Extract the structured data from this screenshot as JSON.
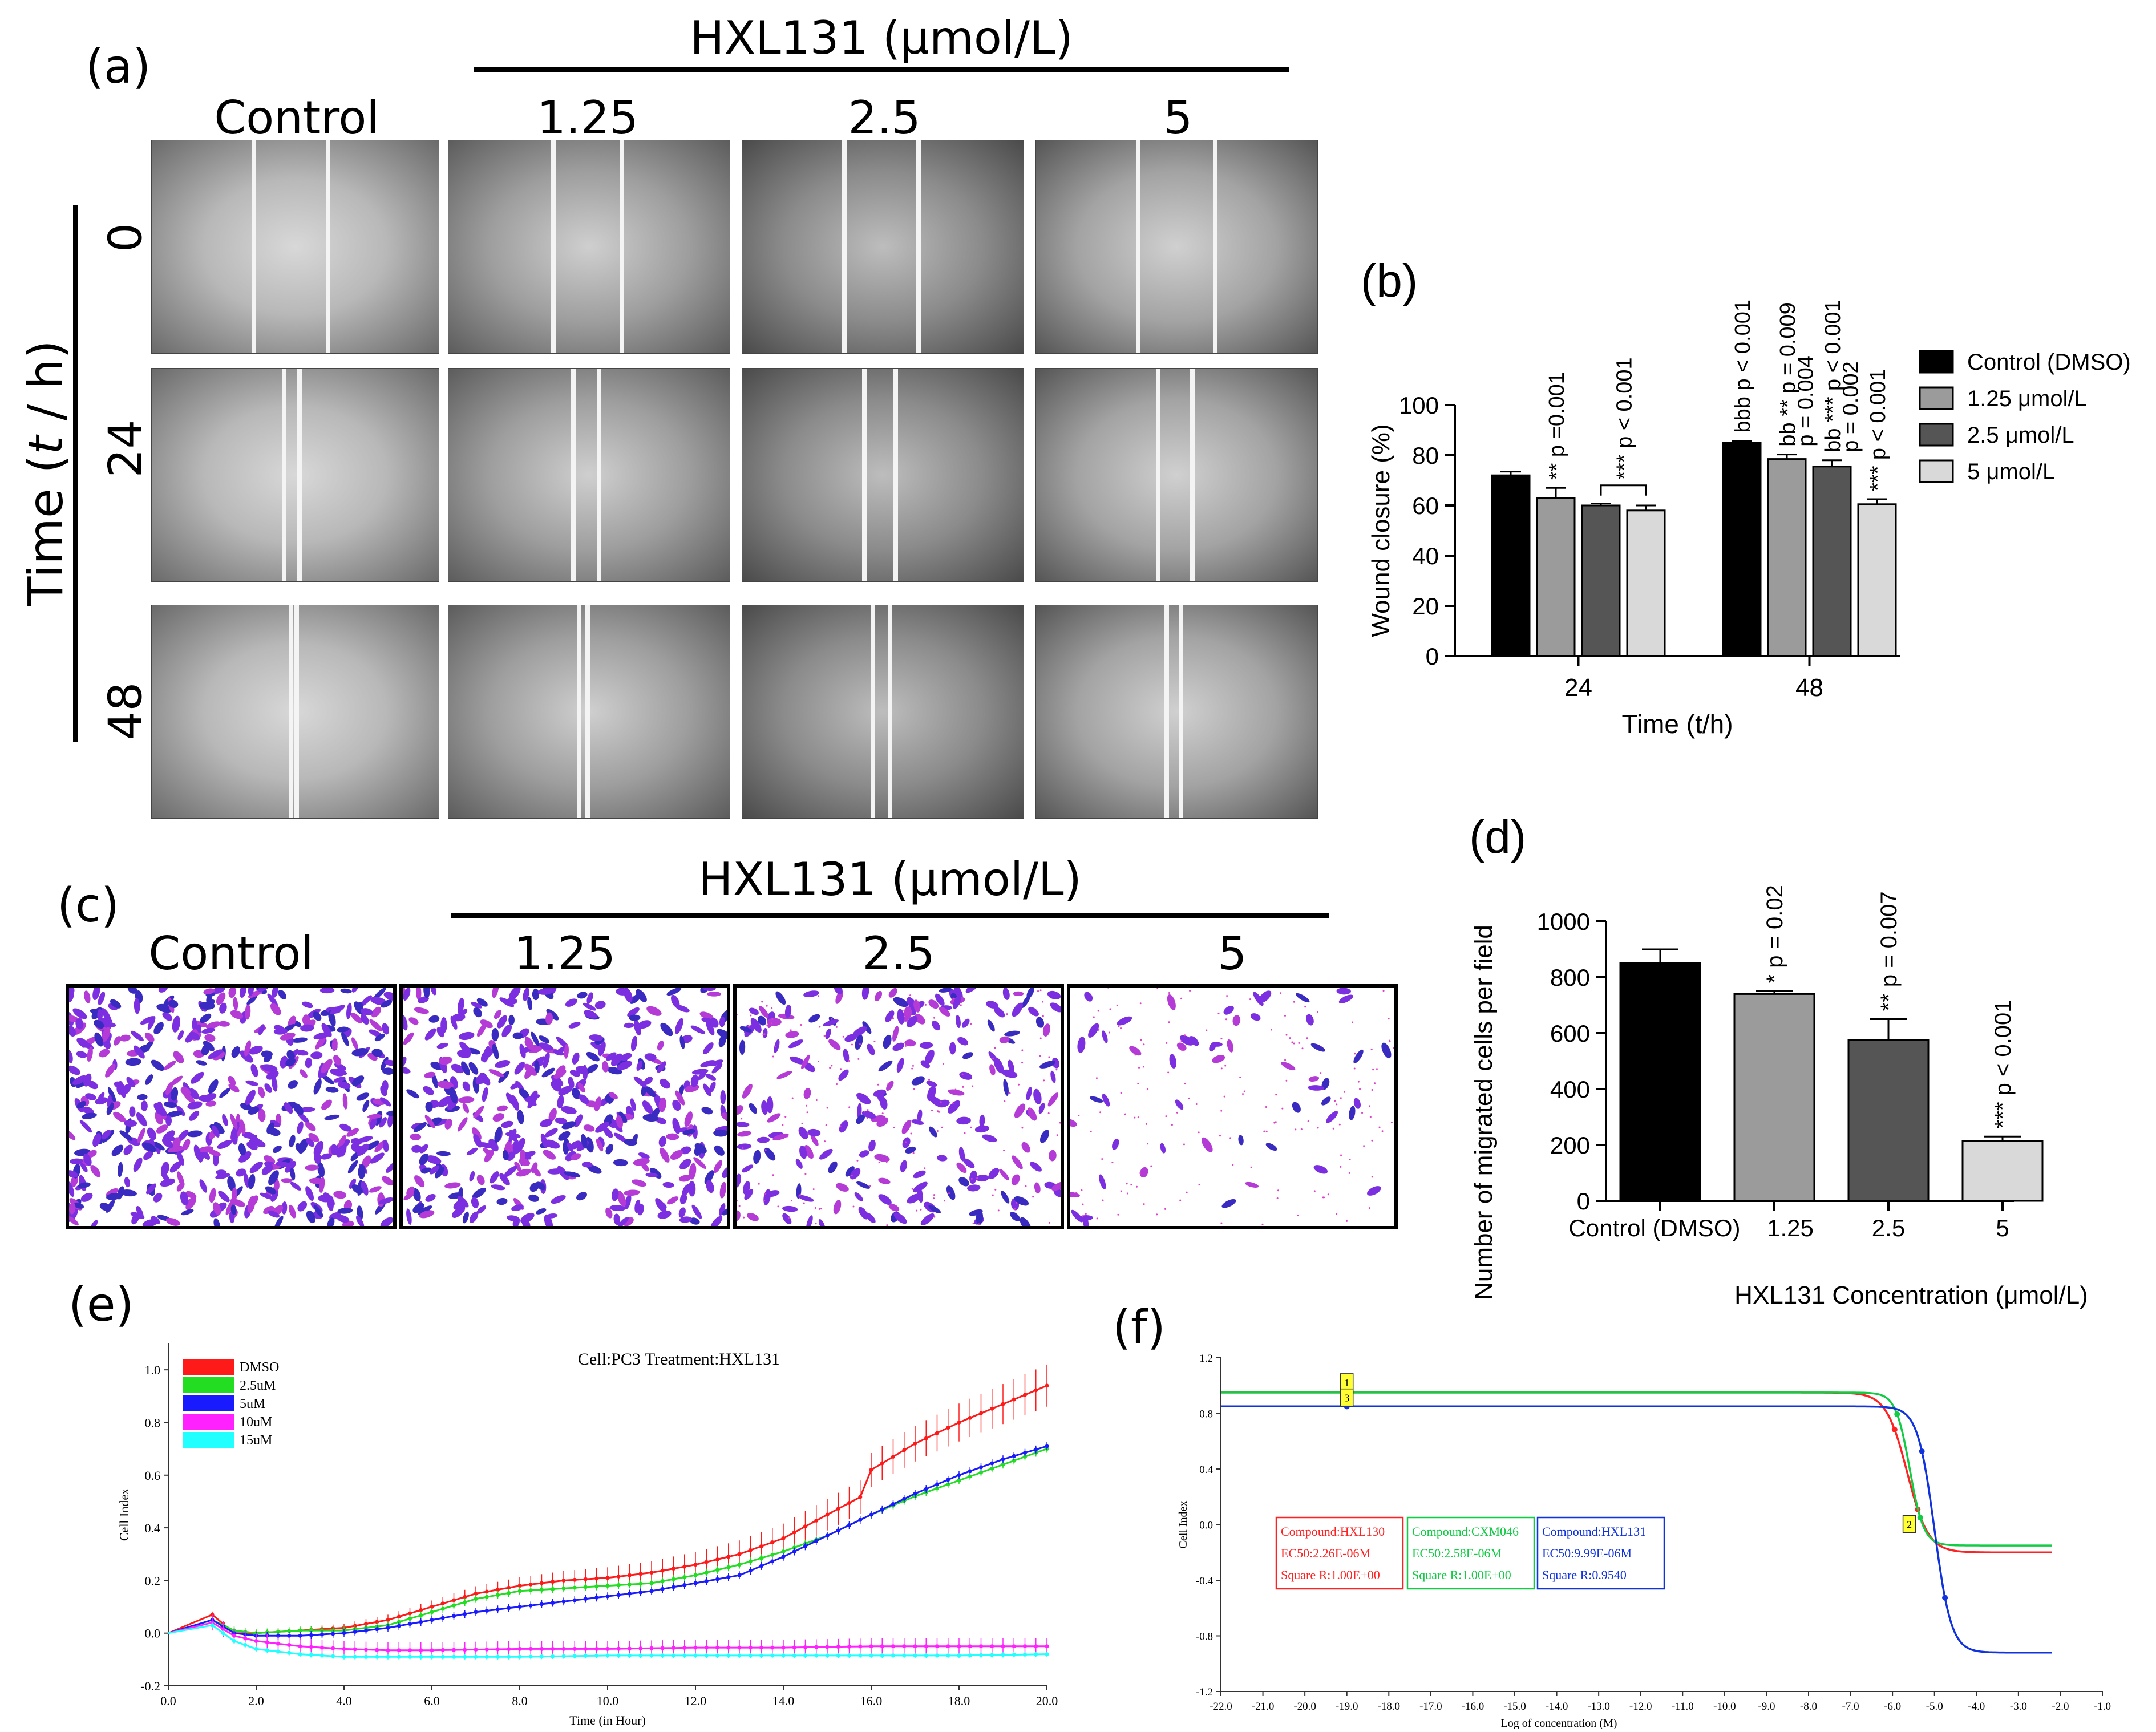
{
  "panel_a": {
    "label": "(a)",
    "treatment_header": "HXL131 (μmol/L)",
    "columns": [
      "Control",
      "1.25",
      "2.5",
      "5"
    ],
    "rows": [
      "0",
      "24",
      "48"
    ],
    "y_axis_label_prefix": "Time (",
    "y_axis_label_var": "t",
    "y_axis_label_suffix": " / h)"
  },
  "panel_c": {
    "label": "(c)",
    "treatment_header": "HXL131 (μmol/L)",
    "columns": [
      "Control",
      "1.25",
      "2.5",
      "5"
    ]
  },
  "panel_e_label": "(e)",
  "panel_f_label": "(f)",
  "colors": {
    "black": "#000000",
    "gray1": "#9b9b9b",
    "gray2": "#555555",
    "gray3": "#d9d9d9",
    "red": "#ff1a1a",
    "green": "#22dd22",
    "blue": "#1a1aff",
    "magenta": "#ff22ff",
    "cyan": "#22ffff",
    "f_red": "#ff2222",
    "f_green": "#11cc44",
    "f_blue": "#1133dd",
    "stain": "#8a2be2"
  },
  "chart_data": [
    {
      "id": "b",
      "type": "bar",
      "panel_label": "(b)",
      "ylabel": "Wound closure (%)",
      "xlabel": "Time (t/h)",
      "ylim": [
        0,
        100
      ],
      "yticks": [
        0,
        20,
        40,
        60,
        80,
        100
      ],
      "categories": [
        "24",
        "48"
      ],
      "series": [
        {
          "name": "Control (DMSO)",
          "values": [
            72,
            85
          ],
          "errors": [
            1.5,
            0.8
          ]
        },
        {
          "name": "1.25 μmol/L",
          "values": [
            63,
            78.5
          ],
          "errors": [
            4,
            1.8
          ]
        },
        {
          "name": "2.5 μmol/L",
          "values": [
            60,
            75.5
          ],
          "errors": [
            0.8,
            2.5
          ]
        },
        {
          "name": "5 μmol/L",
          "values": [
            58,
            60.5
          ],
          "errors": [
            2,
            2
          ]
        }
      ],
      "annotations": [
        {
          "group": "24",
          "series": 1,
          "text": "** p =0.001"
        },
        {
          "group": "24",
          "series": 2.5,
          "text": "*** p < 0.001",
          "bracket": true
        },
        {
          "group": "48",
          "series": 0,
          "text": "bbb p < 0.001"
        },
        {
          "group": "48",
          "series": 1,
          "text": "bb ** p = 0.009"
        },
        {
          "group": "48",
          "series": 1.4,
          "text": "p = 0.004"
        },
        {
          "group": "48",
          "series": 2,
          "text": "bb *** p < 0.001"
        },
        {
          "group": "48",
          "series": 2.4,
          "text": "p = 0.002"
        },
        {
          "group": "48",
          "series": 3,
          "text": "*** p < 0.001"
        }
      ]
    },
    {
      "id": "d",
      "type": "bar",
      "panel_label": "(d)",
      "ylabel": "Number of migrated cells per field",
      "xlabel": "HXL131 Concentration (μmol/L)",
      "ylim": [
        0,
        1000
      ],
      "yticks": [
        0,
        200,
        400,
        600,
        800,
        1000
      ],
      "categories": [
        "Control (DMSO)",
        "1.25",
        "2.5",
        "5"
      ],
      "values": [
        850,
        740,
        575,
        215
      ],
      "errors": [
        50,
        10,
        75,
        15
      ],
      "annotations": [
        "",
        "* p = 0.02",
        "** p = 0.007",
        "*** p < 0.001"
      ]
    },
    {
      "id": "e",
      "type": "line",
      "title": "Cell:PC3  Treatment:HXL131",
      "xlabel": "Time (in Hour)",
      "ylabel": "Cell Index",
      "xlim": [
        0,
        20
      ],
      "ylim": [
        -0.2,
        1.1
      ],
      "xticks": [
        0,
        2,
        4,
        6,
        8,
        10,
        12,
        14,
        16,
        18,
        20
      ],
      "yticks": [
        -0.2,
        0,
        0.2,
        0.4,
        0.6,
        0.8,
        1.0
      ],
      "series": [
        {
          "name": "DMSO",
          "x": [
            0,
            1,
            1.5,
            2,
            3,
            4,
            5,
            6,
            7,
            8,
            9,
            10,
            11,
            12,
            13,
            14,
            15,
            15.9,
            16,
            17,
            18,
            19,
            20
          ],
          "y": [
            0,
            0.07,
            0.0,
            0.0,
            0.01,
            0.02,
            0.05,
            0.1,
            0.15,
            0.18,
            0.2,
            0.21,
            0.23,
            0.26,
            0.3,
            0.36,
            0.45,
            0.53,
            0.62,
            0.72,
            0.8,
            0.87,
            0.94
          ],
          "err": 0.08
        },
        {
          "name": "2.5uM",
          "x": [
            0,
            1,
            1.5,
            2,
            3,
            4,
            5,
            6,
            7,
            8,
            9,
            10,
            11,
            12,
            13,
            14,
            15,
            16,
            17,
            18,
            19,
            20
          ],
          "y": [
            0,
            0.05,
            0.01,
            0.0,
            0.01,
            0.01,
            0.03,
            0.08,
            0.13,
            0.16,
            0.17,
            0.18,
            0.19,
            0.22,
            0.26,
            0.31,
            0.37,
            0.45,
            0.52,
            0.58,
            0.64,
            0.7
          ],
          "err": 0.015
        },
        {
          "name": "5uM",
          "x": [
            0,
            1,
            1.5,
            2,
            3,
            4,
            5,
            6,
            7,
            8,
            9,
            10,
            11,
            12,
            13,
            14,
            15,
            16,
            17,
            18,
            19,
            20
          ],
          "y": [
            0,
            0.05,
            0.0,
            -0.01,
            -0.01,
            0.0,
            0.02,
            0.05,
            0.08,
            0.1,
            0.12,
            0.14,
            0.16,
            0.19,
            0.22,
            0.29,
            0.37,
            0.45,
            0.53,
            0.6,
            0.66,
            0.71
          ],
          "err": 0.015
        },
        {
          "name": "10uM",
          "x": [
            0,
            1,
            1.5,
            2,
            3,
            4,
            5,
            6,
            8,
            10,
            12,
            14,
            16,
            18,
            20
          ],
          "y": [
            0,
            0.04,
            -0.01,
            -0.03,
            -0.05,
            -0.06,
            -0.065,
            -0.065,
            -0.06,
            -0.06,
            -0.055,
            -0.055,
            -0.05,
            -0.05,
            -0.05
          ],
          "err": 0.03
        },
        {
          "name": "15uM",
          "x": [
            0,
            1,
            1.5,
            2,
            3,
            4,
            5,
            6,
            8,
            10,
            12,
            14,
            16,
            18,
            20
          ],
          "y": [
            0,
            0.03,
            -0.03,
            -0.06,
            -0.08,
            -0.09,
            -0.09,
            -0.09,
            -0.09,
            -0.085,
            -0.085,
            -0.085,
            -0.085,
            -0.085,
            -0.08
          ],
          "err": 0.01
        }
      ]
    },
    {
      "id": "f",
      "type": "line",
      "xlabel": "Log of concentration (M)",
      "ylabel": "Cell Index",
      "xlim": [
        -22,
        -1
      ],
      "ylim": [
        -1.2,
        1.2
      ],
      "xticks": [
        -22,
        -21,
        -20,
        -19,
        -18,
        -17,
        -16,
        -15,
        -14,
        -13,
        -12,
        -11,
        -10,
        -9,
        -8,
        -7,
        -6,
        -5,
        -4,
        -3,
        -2,
        -1
      ],
      "yticks": [
        -1.2,
        -0.8,
        -0.4,
        0.0,
        0.4,
        0.8,
        1.2
      ],
      "series": [
        {
          "name": "HXL130",
          "top": 0.95,
          "bottom": -0.2,
          "log_ec50": -5.65,
          "slope": 4,
          "x_start": -22,
          "x_end": -2.2
        },
        {
          "name": "CXM046",
          "top": 0.95,
          "bottom": -0.15,
          "log_ec50": -5.59,
          "slope": 6,
          "x_start": -22,
          "x_end": -2.2
        },
        {
          "name": "HXL131",
          "top": 0.85,
          "bottom": -0.92,
          "log_ec50": -5.0,
          "slope": 5,
          "x_start": -22,
          "x_end": -2.2
        }
      ],
      "legend_boxes": [
        {
          "compound": "Compound:HXL130",
          "ec50": "EC50:2.26E-06M",
          "r": "Square R:1.00E+00"
        },
        {
          "compound": "Compound:CXM046",
          "ec50": "EC50:2.58E-06M",
          "r": "Square R:1.00E+00"
        },
        {
          "compound": "Compound:HXL131",
          "ec50": "EC50:9.99E-06M",
          "r": "Square R:0.9540"
        }
      ],
      "markers": [
        "1",
        "3",
        "2"
      ]
    }
  ]
}
